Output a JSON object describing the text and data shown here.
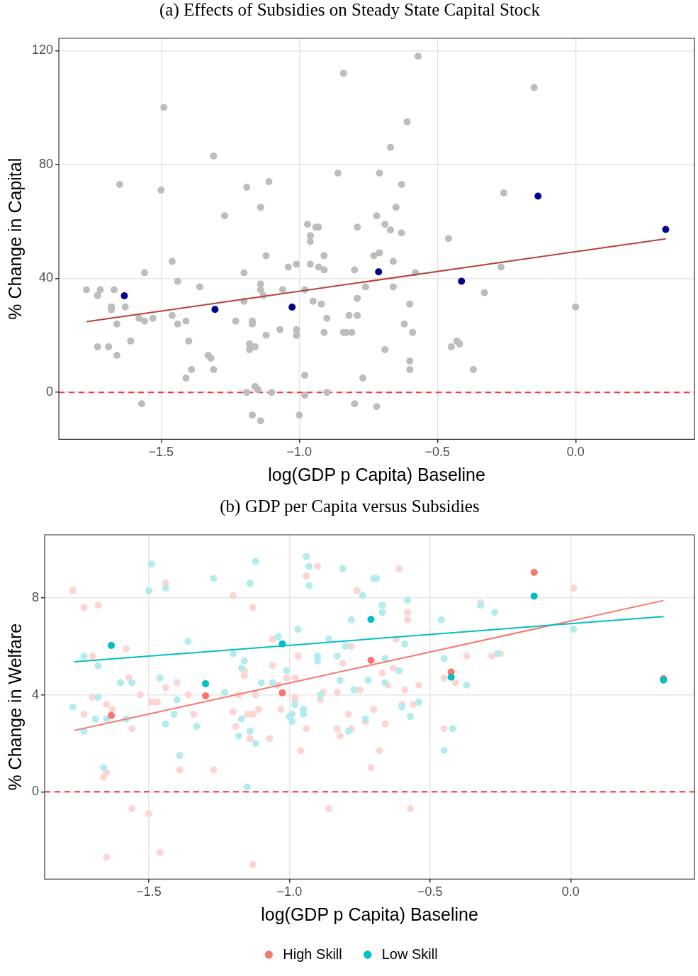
{
  "chart_data": [
    {
      "type": "scatter",
      "title": "(a) Effects of Subsidies on Steady State Capital Stock",
      "xlabel": "log(GDP p Capita) Baseline",
      "ylabel": "% Change in Capital",
      "xlim": [
        -1.87,
        0.43
      ],
      "ylim": [
        -16.5,
        124.3
      ],
      "xticks": [
        {
          "value": -1.5,
          "label": "−1.5"
        },
        {
          "value": -1.0,
          "label": "−1.0"
        },
        {
          "value": -0.5,
          "label": "−0.5"
        },
        {
          "value": 0.0,
          "label": "0.0"
        }
      ],
      "yticks": [
        0,
        40,
        80,
        120
      ],
      "grid": true,
      "legend": false,
      "marker": "circle",
      "ref_lines": [
        {
          "axis": "y",
          "value": 0,
          "color": "#ff3333",
          "line_style": "dashed"
        }
      ],
      "series": [
        {
          "type": "scatter",
          "color": "#bdbdbd",
          "x": [
            -1.77,
            -1.73,
            -1.72,
            -1.68,
            -1.68,
            -1.67,
            -1.66,
            -1.73,
            -1.69,
            -1.66,
            -1.65,
            -1.63,
            -1.61,
            -1.58,
            -1.56,
            -1.53,
            -1.57,
            -1.56,
            -1.5,
            -1.49,
            -1.46,
            -1.46,
            -1.44,
            -1.44,
            -1.41,
            -1.4,
            -1.39,
            -1.41,
            -1.36,
            -1.33,
            -1.31,
            -1.32,
            -1.31,
            -1.27,
            -1.23,
            -1.2,
            -1.2,
            -1.19,
            -1.19,
            -1.18,
            -1.17,
            -1.18,
            -1.17,
            -1.16,
            -1.16,
            -1.17,
            -1.15,
            -1.14,
            -1.14,
            -1.14,
            -1.13,
            -1.12,
            -1.12,
            -1.11,
            -1.14,
            -1.1,
            -1.07,
            -1.06,
            -1.04,
            -1.01,
            -1.01,
            -1.01,
            -1.0,
            -0.98,
            -0.98,
            -0.98,
            -0.97,
            -0.96,
            -0.96,
            -0.96,
            -0.95,
            -0.94,
            -0.93,
            -0.93,
            -0.92,
            -0.91,
            -0.9,
            -0.91,
            -0.91,
            -0.9,
            -0.86,
            -0.84,
            -0.84,
            -0.83,
            -0.81,
            -0.8,
            -0.79,
            -0.82,
            -0.79,
            -0.79,
            -0.8,
            -0.77,
            -0.76,
            -0.73,
            -0.72,
            -0.72,
            -0.71,
            -0.71,
            -0.69,
            -0.69,
            -0.67,
            -0.67,
            -0.66,
            -0.66,
            -0.65,
            -0.63,
            -0.63,
            -0.61,
            -0.62,
            -0.6,
            -0.6,
            -0.6,
            -0.58,
            -0.57,
            -0.59,
            -0.46,
            -0.45,
            -0.43,
            -0.42,
            -0.37,
            -0.33,
            -0.27,
            -0.26,
            -0.15,
            0.0
          ],
          "values": [
            36,
            34,
            36,
            30,
            29,
            36,
            24,
            16,
            16,
            13,
            73,
            30,
            18,
            26,
            25,
            26,
            -4,
            42,
            71,
            100,
            46,
            27,
            39,
            24,
            25,
            18,
            8,
            5,
            37,
            13,
            83,
            12,
            8,
            62,
            25,
            42,
            32,
            0,
            72,
            17,
            24,
            15,
            25,
            2,
            16,
            -8,
            1,
            65,
            36,
            38,
            34,
            20,
            48,
            74,
            -10,
            0,
            22,
            36,
            44,
            45,
            20,
            22,
            -8,
            36,
            6,
            -1,
            59,
            45,
            53,
            55,
            32,
            58,
            58,
            44,
            31,
            48,
            26,
            21,
            43,
            0,
            77,
            112,
            21,
            21,
            21,
            43,
            58,
            27,
            27,
            33,
            -4,
            5,
            37,
            48,
            62,
            -5,
            77,
            49,
            59,
            15,
            86,
            57,
            46,
            37,
            65,
            73,
            56,
            95,
            24,
            31,
            11,
            8,
            42,
            118,
            21,
            54,
            16,
            18,
            17,
            8,
            35,
            44,
            70,
            107,
            30
          ]
        },
        {
          "type": "line",
          "color": "#b5433e",
          "marker": "none",
          "line_style": "solid",
          "x": [
            -1.77,
            0.326
          ],
          "values": [
            24.8,
            53.9
          ]
        },
        {
          "type": "scatter",
          "color": "#00008b",
          "x": [
            -1.633,
            -1.305,
            -1.026,
            -0.713,
            -0.413,
            -0.136,
            0.326
          ],
          "values": [
            33.9,
            29.1,
            29.9,
            42.3,
            39.0,
            68.9,
            57.2
          ]
        }
      ]
    },
    {
      "type": "scatter",
      "title": "(b) GDP per Capita versus Subsidies",
      "xlabel": "log(GDP p Capita) Baseline",
      "ylabel": "% Change in Welfare",
      "xlim": [
        -1.87,
        0.44
      ],
      "ylim": [
        -3.6,
        10.6
      ],
      "xticks": [
        {
          "value": -1.5,
          "label": "−1.5"
        },
        {
          "value": -1.0,
          "label": "−1.0"
        },
        {
          "value": -0.5,
          "label": "−0.5"
        },
        {
          "value": 0.0,
          "label": "0.0"
        }
      ],
      "yticks": [
        0,
        4,
        8
      ],
      "grid": true,
      "legend": "bottom",
      "marker": "circle",
      "ref_lines": [
        {
          "axis": "y",
          "value": 0,
          "color": "#ff3333",
          "line_style": "dashed"
        }
      ],
      "series": [
        {
          "type": "scatter",
          "color": "#fdd6d3",
          "x": [
            -1.77,
            -1.73,
            -1.68,
            -1.7,
            -1.73,
            -1.7,
            -1.66,
            -1.65,
            -1.65,
            -1.65,
            -1.63,
            -1.58,
            -1.57,
            -1.56,
            -1.56,
            -1.53,
            -1.5,
            -1.49,
            -1.47,
            -1.46,
            -1.44,
            -1.44,
            -1.4,
            -1.39,
            -1.36,
            -1.34,
            -1.27,
            -1.2,
            -1.2,
            -1.19,
            -1.18,
            -1.16,
            -1.16,
            -1.15,
            -1.14,
            -1.13,
            -1.13,
            -1.13,
            -1.12,
            -1.11,
            -1.07,
            -1.06,
            -1.06,
            -1.04,
            -1.03,
            -1.01,
            -1.0,
            -0.98,
            -0.98,
            -0.96,
            -0.98,
            -0.97,
            -0.94,
            -0.94,
            -0.9,
            -0.89,
            -0.88,
            -0.86,
            -0.83,
            -0.83,
            -0.82,
            -0.81,
            -0.79,
            -0.78,
            -0.78,
            -0.76,
            -0.75,
            -0.73,
            -0.71,
            -0.7,
            -0.68,
            -0.67,
            -0.66,
            -0.65,
            -0.63,
            -0.62,
            -0.61,
            -0.6,
            -0.59,
            -0.58,
            -0.58,
            -0.57,
            -0.56,
            -0.54,
            -0.45,
            -0.45,
            -0.41,
            -0.37,
            -0.32,
            -0.28,
            -0.25,
            0.01
          ],
          "values": [
            8.3,
            7.6,
            7.7,
            3.9,
            3.2,
            5.6,
            0.6,
            0.8,
            -2.7,
            3.6,
            3.4,
            5.9,
            4.7,
            2.6,
            -0.7,
            4.0,
            -0.9,
            3.7,
            3.7,
            -2.5,
            8.6,
            4.3,
            4.5,
            0.9,
            4.0,
            3.2,
            0.9,
            8.1,
            3.3,
            2.7,
            4.0,
            5.0,
            4.8,
            3.2,
            2.2,
            7.6,
            3.2,
            -3.0,
            4.0,
            3.4,
            2.2,
            5.2,
            6.3,
            4.4,
            3.4,
            4.7,
            null,
            3.8,
            3.9,
            1.7,
            4.7,
            5.6,
            8.9,
            2.6,
            9.3,
            3.8,
            4.1,
            -0.7,
            4.1,
            2.6,
            2.3,
            5.3,
            3.2,
            6.0,
            2.6,
            8.3,
            4.2,
            2.9,
            1.0,
            3.4,
            1.7,
            4.9,
            2.8,
            4.4,
            5.1,
            6.3,
            9.2,
            3.6,
            4.2,
            7.4,
            7.1,
            -0.7,
            3.6,
            4.4,
            2.6,
            4.7,
            4.5,
            5.6,
            7.8,
            5.6,
            5.7,
            8.4
          ]
        },
        {
          "type": "scatter",
          "color": "#b3ecee",
          "x": [
            -1.77,
            -1.73,
            -1.73,
            -1.69,
            -1.68,
            -1.68,
            -1.66,
            -1.65,
            -1.6,
            -1.58,
            -1.56,
            -1.5,
            -1.49,
            -1.46,
            -1.44,
            -1.44,
            -1.41,
            -1.4,
            -1.39,
            -1.36,
            -1.33,
            -1.27,
            -1.23,
            -1.2,
            -1.18,
            -1.17,
            -1.17,
            -1.16,
            -1.15,
            -1.14,
            -1.14,
            -1.12,
            -1.12,
            -1.1,
            -1.06,
            -1.04,
            -1.01,
            -1.0,
            -0.99,
            -0.99,
            -0.98,
            -0.97,
            -0.95,
            -0.95,
            -0.94,
            -0.93,
            -0.93,
            -0.9,
            -0.9,
            -0.89,
            -0.86,
            -0.83,
            -0.82,
            -0.81,
            -0.8,
            -0.79,
            -0.78,
            -0.77,
            -0.74,
            -0.73,
            -0.72,
            -0.7,
            -0.69,
            -0.67,
            -0.67,
            -0.66,
            -0.66,
            -0.61,
            -0.58,
            -0.59,
            -0.6,
            -0.57,
            -0.54,
            -0.46,
            -0.45,
            -0.45,
            -0.42,
            -0.37,
            -0.32,
            -0.27,
            -0.26,
            0.01
          ],
          "values": [
            3.5,
            2.5,
            5.6,
            3.0,
            3.9,
            5.2,
            1.0,
            3.0,
            4.5,
            3.0,
            4.5,
            8.3,
            9.4,
            4.7,
            8.4,
            2.8,
            3.2,
            3.8,
            1.5,
            6.2,
            2.7,
            8.8,
            4.1,
            5.7,
            2.3,
            3.0,
            5.1,
            5.4,
            0.2,
            8.6,
            2.5,
            9.5,
            2.0,
            4.5,
            4.5,
            6.4,
            5.0,
            3.1,
            3.2,
            2.9,
            3.6,
            6.7,
            3.4,
            3.2,
            9.7,
            9.3,
            8.5,
            5.6,
            5.4,
            4.0,
            6.3,
            5.6,
            4.6,
            9.2,
            6.0,
            2.5,
            7.1,
            4.2,
            8.1,
            3.0,
            4.6,
            8.8,
            8.8,
            7.7,
            7.4,
            5.5,
            4.5,
            5.0,
            7.9,
            6.1,
            3.5,
            3.1,
            3.7,
            7.1,
            1.7,
            5.5,
            2.6,
            4.4,
            7.7,
            7.4,
            5.7,
            6.7
          ]
        },
        {
          "type": "line",
          "color": "#f8766d",
          "marker": "none",
          "line_style": "solid",
          "x": [
            -1.765,
            0.33
          ],
          "values": [
            2.53,
            7.89
          ]
        },
        {
          "type": "line",
          "color": "#00bfc4",
          "marker": "none",
          "line_style": "solid",
          "x": [
            -1.765,
            0.33
          ],
          "values": [
            5.36,
            7.23
          ]
        },
        {
          "type": "scatter",
          "name": "High Skill",
          "color": "#f8766d",
          "x": [
            -1.633,
            -1.298,
            -1.025,
            -0.71,
            -0.425,
            -0.13,
            0.33
          ],
          "values": [
            3.15,
            3.96,
            4.08,
            5.42,
            4.94,
            9.05,
            4.67
          ]
        },
        {
          "type": "scatter",
          "name": "Low Skill",
          "color": "#00bfc4",
          "x": [
            -1.633,
            -1.298,
            -1.025,
            -0.71,
            -0.425,
            -0.13,
            0.33
          ],
          "values": [
            6.04,
            4.46,
            6.1,
            7.11,
            4.73,
            8.07,
            4.61
          ]
        }
      ]
    }
  ]
}
